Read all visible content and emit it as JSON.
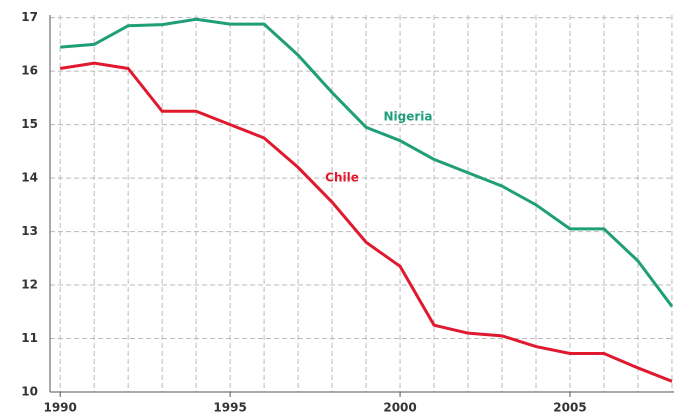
{
  "chart_data": {
    "type": "line",
    "x": [
      1990,
      1991,
      1992,
      1993,
      1994,
      1995,
      1996,
      1997,
      1998,
      1999,
      2000,
      2001,
      2002,
      2003,
      2004,
      2005,
      2006,
      2007,
      2008
    ],
    "series": [
      {
        "name": "Nigeria",
        "color": "#1f9e78",
        "values": [
          16.45,
          16.5,
          16.85,
          16.87,
          16.97,
          16.88,
          16.88,
          16.3,
          15.6,
          14.95,
          14.7,
          14.35,
          14.1,
          13.85,
          13.5,
          13.05,
          13.05,
          12.45,
          11.6
        ]
      },
      {
        "name": "Chile",
        "color": "#e0192f",
        "values": [
          16.05,
          16.15,
          16.05,
          15.25,
          15.25,
          15.0,
          14.75,
          14.2,
          13.55,
          12.8,
          12.35,
          11.25,
          11.1,
          11.05,
          10.85,
          10.72,
          10.72,
          10.45,
          10.2
        ]
      }
    ],
    "xlim": [
      1989.7,
      2008.06
    ],
    "xticks": [
      1990,
      1995,
      2000,
      2005
    ],
    "ylim": [
      10,
      17.05
    ],
    "yticks": [
      10,
      11,
      12,
      13,
      14,
      15,
      16,
      17
    ],
    "grid": true
  }
}
